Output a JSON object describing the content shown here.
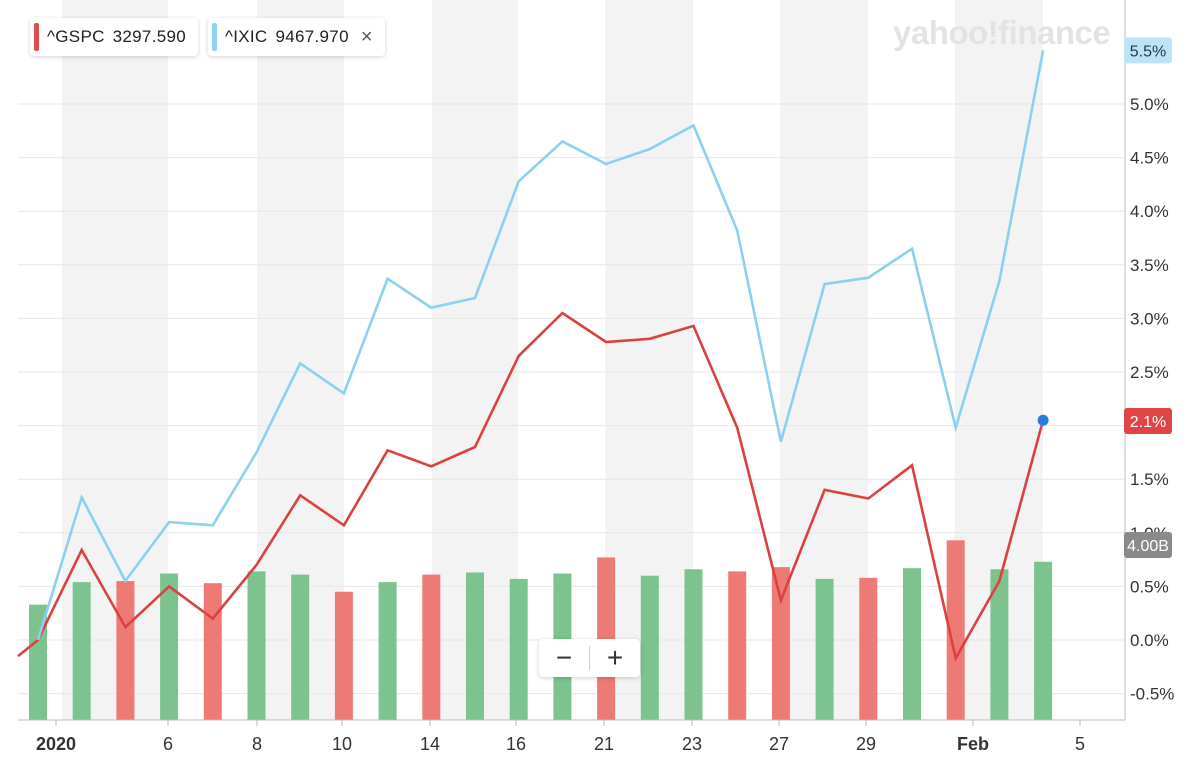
{
  "brand": "yahoo!finance",
  "legend": [
    {
      "symbol": "^GSPC",
      "value": "3297.590",
      "color": "#e04b4b"
    },
    {
      "symbol": "^IXIC",
      "value": "9467.970",
      "color": "#8fd1f2",
      "close_label": "×"
    }
  ],
  "zoom": {
    "minus": "−",
    "plus": "+"
  },
  "colors": {
    "gspc": "#dc4040",
    "ixic": "#8cd0f0",
    "bar_up": "#7cc38f",
    "bar_down": "#ee7a76",
    "volume_tag": "#8a8a8a",
    "marker": "#2a7be4"
  },
  "chart_data": {
    "type": "line",
    "y_unit": "%",
    "y_ticks": [
      "-0.5%",
      "0.0%",
      "0.5%",
      "1.0%",
      "1.5%",
      "2.0%",
      "2.5%",
      "3.0%",
      "3.5%",
      "4.0%",
      "4.5%",
      "5.0%"
    ],
    "ylim": [
      -0.75,
      5.85
    ],
    "x_ticks": [
      "2020",
      "6",
      "8",
      "10",
      "14",
      "16",
      "21",
      "23",
      "27",
      "29",
      "Feb",
      "5"
    ],
    "x_tick_index": [
      0.5,
      3,
      5,
      7,
      9,
      11,
      13,
      15,
      17,
      19,
      21,
      23
    ],
    "series": [
      {
        "name": "^GSPC",
        "color": "#dc4040",
        "values": [
          -0.15,
          0.0,
          0.84,
          0.12,
          0.5,
          0.2,
          0.7,
          1.35,
          1.07,
          1.77,
          1.62,
          1.8,
          2.65,
          3.05,
          2.78,
          2.81,
          2.93,
          1.98,
          0.37,
          1.4,
          1.32,
          1.63,
          -0.17,
          0.55,
          2.05
        ]
      },
      {
        "name": "^IXIC",
        "color": "#8cd0f0",
        "values": [
          null,
          0.0,
          1.33,
          0.55,
          1.1,
          1.07,
          1.75,
          2.58,
          2.3,
          3.37,
          3.1,
          3.19,
          4.28,
          4.65,
          4.44,
          4.58,
          4.8,
          3.82,
          1.85,
          3.32,
          3.38,
          3.65,
          1.98,
          3.35,
          5.5
        ]
      }
    ],
    "volume": {
      "values": [
        0.33,
        0.54,
        0.55,
        0.62,
        0.53,
        0.64,
        0.61,
        0.45,
        0.54,
        0.61,
        0.63,
        0.57,
        0.62,
        0.77,
        0.6,
        0.66,
        0.64,
        0.68,
        0.57,
        0.58,
        0.67,
        0.93,
        0.66,
        0.73
      ],
      "direction": [
        "up",
        "up",
        "down",
        "up",
        "down",
        "up",
        "up",
        "down",
        "up",
        "down",
        "up",
        "up",
        "up",
        "down",
        "up",
        "up",
        "down",
        "down",
        "up",
        "down",
        "up",
        "down",
        "up",
        "up"
      ]
    },
    "price_tags": [
      {
        "label": "5.5%",
        "series": "^IXIC",
        "value": 5.5
      },
      {
        "label": "2.1%",
        "series": "^GSPC",
        "value": 2.05
      },
      {
        "label": "4.00B",
        "series": "volume",
        "value": 0.98
      }
    ],
    "marker": {
      "series": "^GSPC",
      "index": 24
    }
  }
}
